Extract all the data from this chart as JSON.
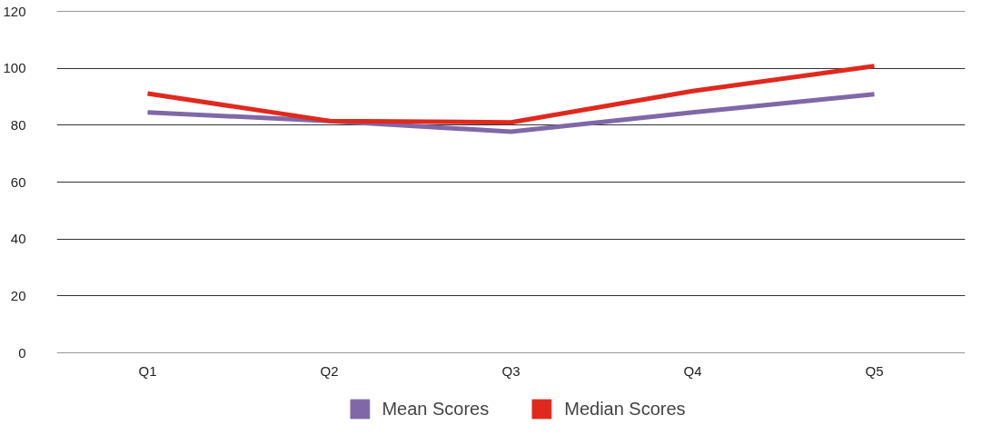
{
  "chart_data": {
    "type": "line",
    "categories": [
      "Q1",
      "Q2",
      "Q3",
      "Q4",
      "Q5"
    ],
    "series": [
      {
        "name": "Mean Scores",
        "color": "#8068a8",
        "values": [
          84.5,
          81.5,
          77.7,
          84.5,
          90.9
        ]
      },
      {
        "name": "Median Scores",
        "color": "#e0291e",
        "values": [
          91.1,
          81.5,
          81,
          92,
          100.8
        ]
      }
    ],
    "ylim": [
      0,
      120
    ],
    "yticks": [
      0,
      20,
      40,
      60,
      80,
      100,
      120
    ],
    "grid": "y",
    "legend": "bottom",
    "marker": "none",
    "line_style": "solid"
  }
}
